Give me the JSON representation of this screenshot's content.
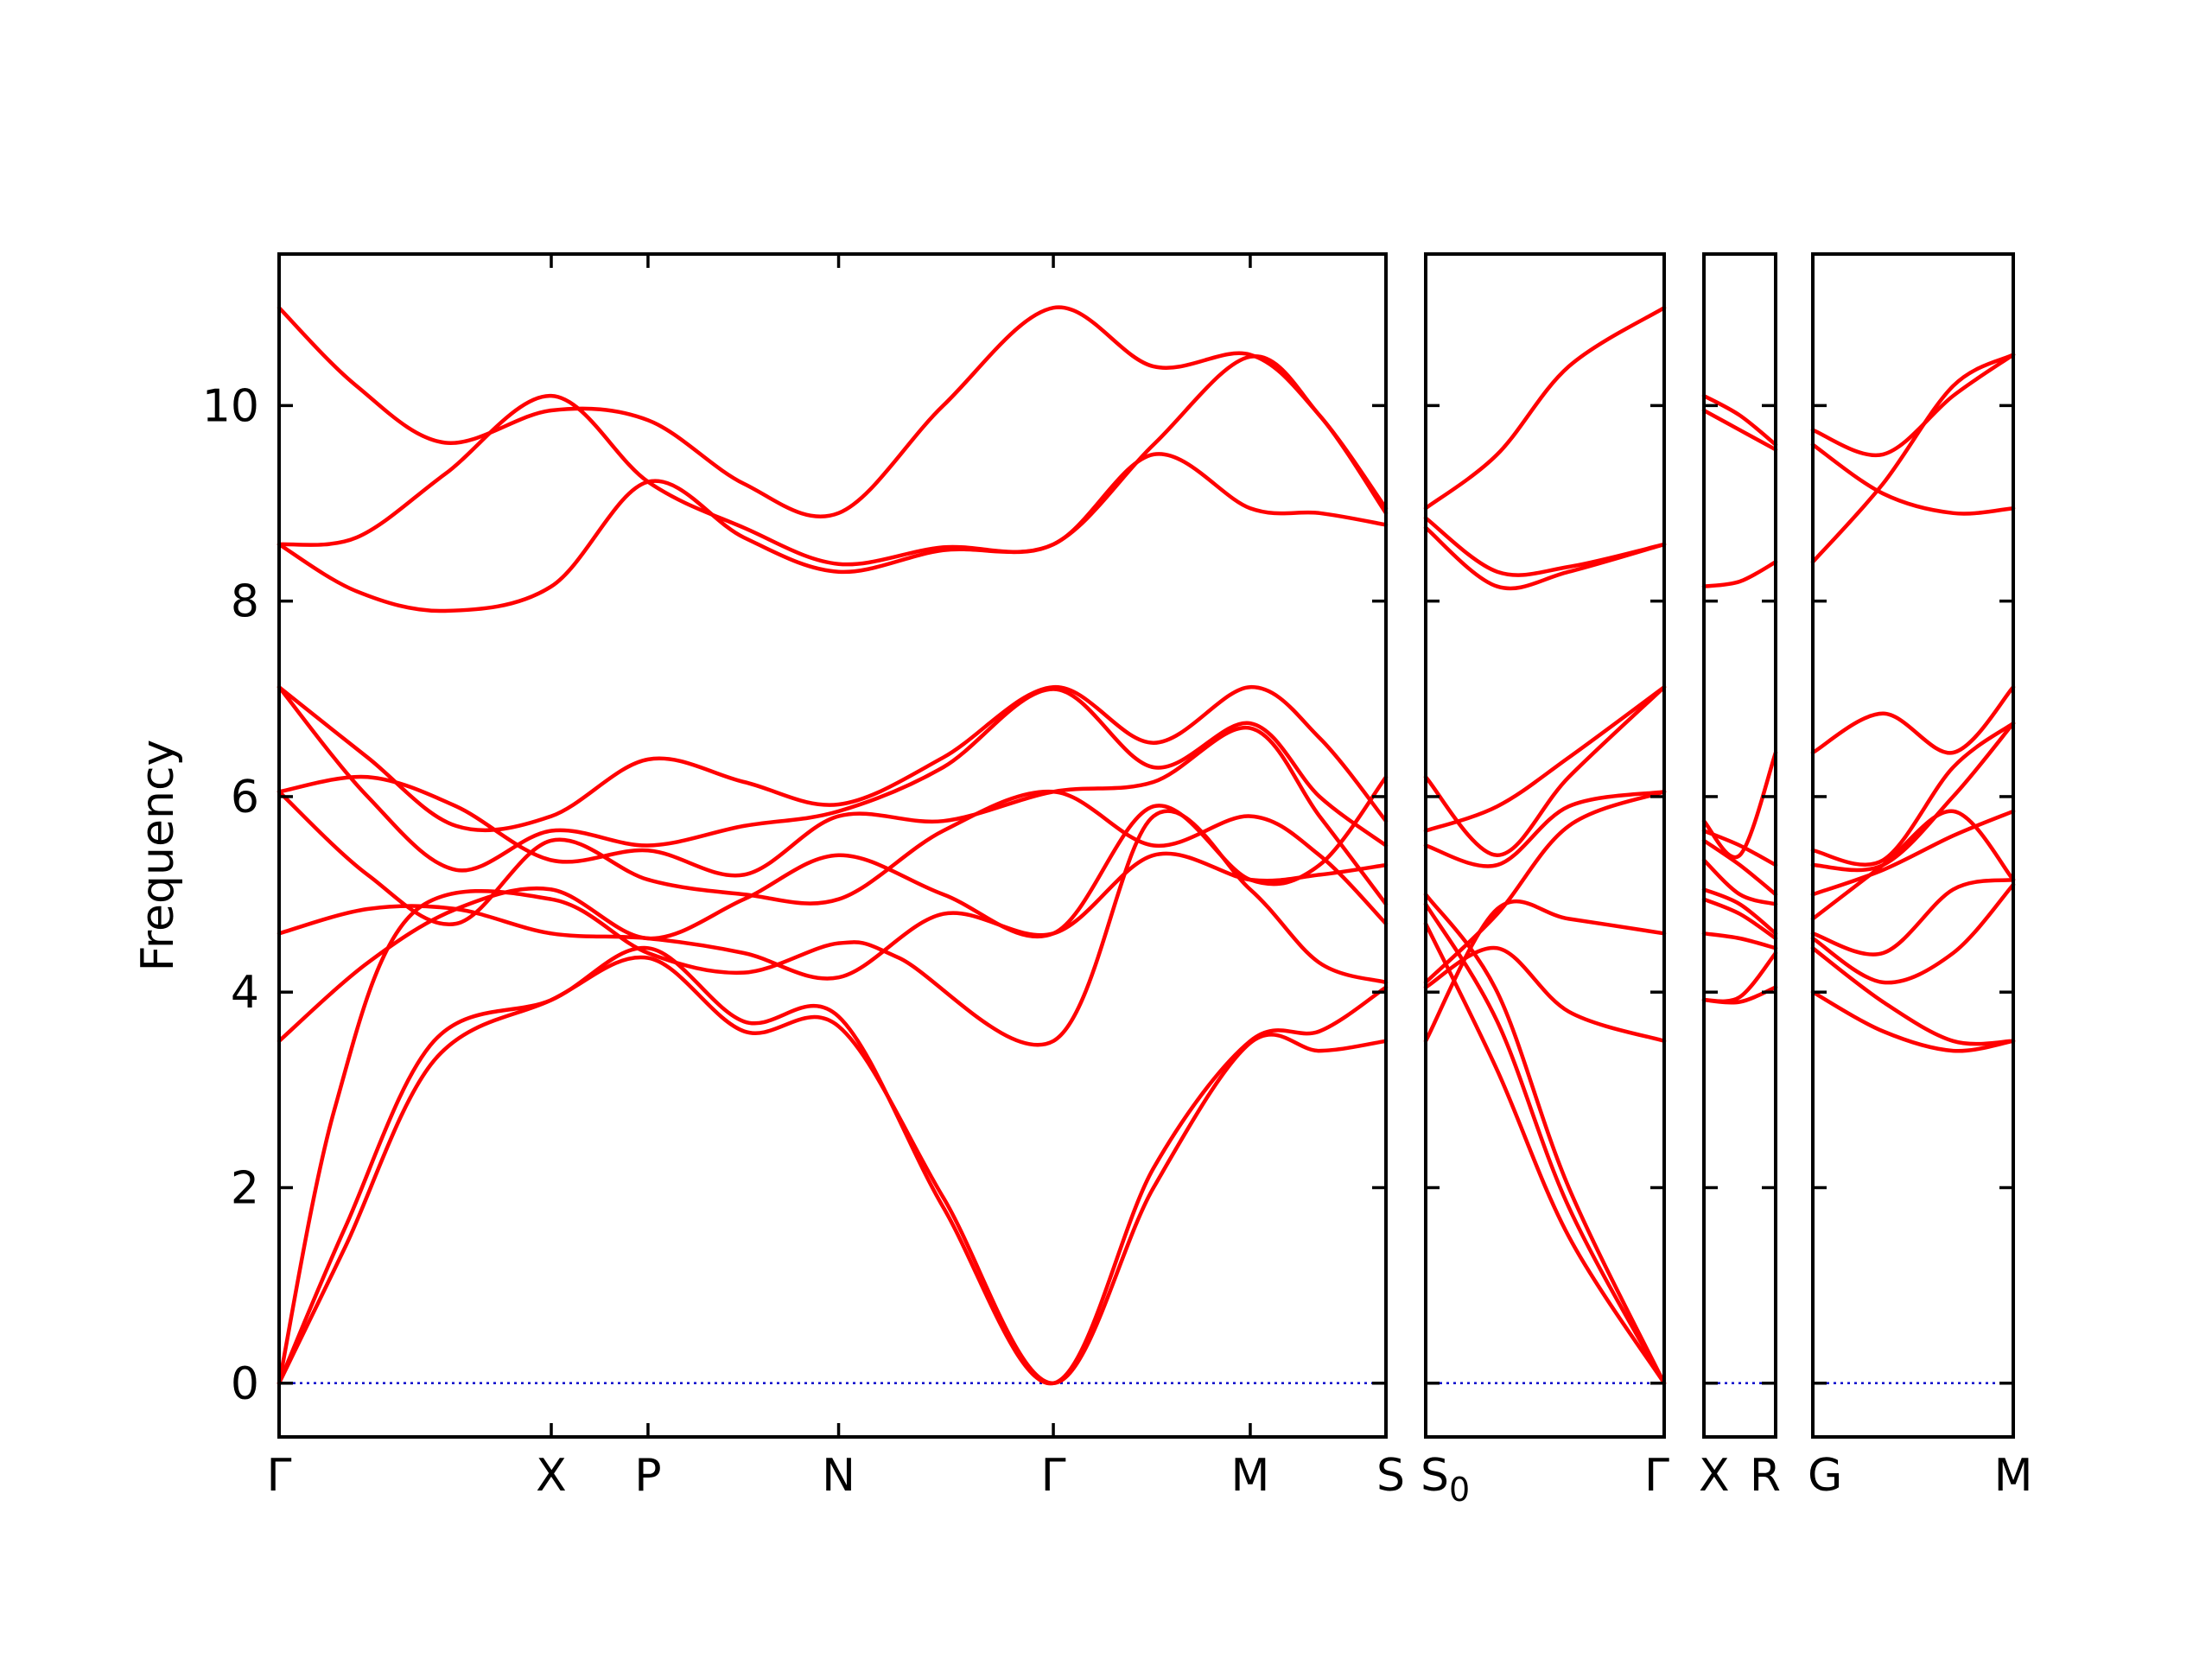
{
  "chart_data": {
    "type": "line",
    "title": "",
    "ylabel": "Frequency",
    "xlabel": "",
    "ylim": [
      -0.55,
      11.55
    ],
    "yticks": [
      0,
      2,
      4,
      6,
      8,
      10
    ],
    "grid": false,
    "colors": {
      "band": "#ff0000",
      "zero_line": "#0000cc",
      "axes": "#000000"
    },
    "segments": [
      {
        "labels": [
          "Γ",
          "X",
          "P",
          "N",
          "Γ",
          "M",
          "S"
        ],
        "points": [
          0,
          0.2459,
          0.3333,
          0.5055,
          0.6995,
          0.8774,
          1.0
        ]
      },
      {
        "labels": [
          "S0",
          "Γ"
        ],
        "points": [
          0,
          1.0
        ]
      },
      {
        "labels": [
          "X",
          "R"
        ],
        "points": [
          0,
          1.0
        ]
      },
      {
        "labels": [
          "G",
          "M"
        ],
        "points": [
          0,
          1.0
        ]
      }
    ],
    "series": [
      {
        "segment": 0,
        "x": [
          0,
          0.07,
          0.15,
          0.2459,
          0.3333,
          0.42,
          0.5055,
          0.6,
          0.6995,
          0.79,
          0.8774,
          0.94,
          1.0
        ],
        "y": [
          11.0,
          10.2,
          9.62,
          9.95,
          9.85,
          9.2,
          8.9,
          10.0,
          11.0,
          10.4,
          10.52,
          9.9,
          8.95
        ]
      },
      {
        "segment": 0,
        "x": [
          0,
          0.07,
          0.15,
          0.2459,
          0.3333,
          0.42,
          0.5055,
          0.6,
          0.6995,
          0.79,
          0.8774,
          0.94,
          1.0
        ],
        "y": [
          8.58,
          8.65,
          9.3,
          10.1,
          9.22,
          8.75,
          8.38,
          8.55,
          8.58,
          9.6,
          10.5,
          9.9,
          8.9
        ]
      },
      {
        "segment": 0,
        "x": [
          0,
          0.07,
          0.15,
          0.2459,
          0.3333,
          0.42,
          0.5055,
          0.6,
          0.6995,
          0.79,
          0.8774,
          0.94,
          1.0
        ],
        "y": [
          8.58,
          8.1,
          7.9,
          8.15,
          9.22,
          8.65,
          8.3,
          8.52,
          8.58,
          9.5,
          8.95,
          8.9,
          8.78
        ]
      },
      {
        "segment": 0,
        "x": [
          0,
          0.08,
          0.16,
          0.2459,
          0.3333,
          0.42,
          0.5055,
          0.6,
          0.6995,
          0.79,
          0.8774,
          0.94,
          1.0
        ],
        "y": [
          7.12,
          6.4,
          5.7,
          5.8,
          6.38,
          6.15,
          5.92,
          6.4,
          7.12,
          6.55,
          7.12,
          6.6,
          5.75
        ]
      },
      {
        "segment": 0,
        "x": [
          0,
          0.08,
          0.16,
          0.2459,
          0.3333,
          0.42,
          0.5055,
          0.6,
          0.6995,
          0.79,
          0.8774,
          0.94,
          1.0
        ],
        "y": [
          7.12,
          6.0,
          5.25,
          5.65,
          5.5,
          5.7,
          5.85,
          6.3,
          7.1,
          6.3,
          6.75,
          6.0,
          5.5
        ]
      },
      {
        "segment": 0,
        "x": [
          0,
          0.08,
          0.16,
          0.2459,
          0.3333,
          0.42,
          0.5055,
          0.6,
          0.6995,
          0.79,
          0.8774,
          0.94,
          1.0
        ],
        "y": [
          6.05,
          6.2,
          5.9,
          5.35,
          5.45,
          5.2,
          5.8,
          5.75,
          6.05,
          6.15,
          6.7,
          5.8,
          4.9
        ]
      },
      {
        "segment": 0,
        "x": [
          0,
          0.08,
          0.16,
          0.2459,
          0.3333,
          0.42,
          0.5055,
          0.6,
          0.6995,
          0.79,
          0.8774,
          0.94,
          1.0
        ],
        "y": [
          6.05,
          5.2,
          4.7,
          5.55,
          5.15,
          5.0,
          4.95,
          5.65,
          6.05,
          5.5,
          5.8,
          5.4,
          4.7
        ]
      },
      {
        "segment": 0,
        "x": [
          0,
          0.08,
          0.16,
          0.2459,
          0.3333,
          0.42,
          0.5055,
          0.6,
          0.6995,
          0.79,
          0.8774,
          0.94,
          1.0
        ],
        "y": [
          4.6,
          4.85,
          4.85,
          4.6,
          4.55,
          4.4,
          4.15,
          4.8,
          4.6,
          5.4,
          5.15,
          5.2,
          5.3
        ]
      },
      {
        "segment": 0,
        "x": [
          0,
          0.08,
          0.16,
          0.2459,
          0.3333,
          0.42,
          0.5055,
          0.6,
          0.6995,
          0.79,
          0.8774,
          0.94,
          1.0
        ],
        "y": [
          3.5,
          4.3,
          4.85,
          5.05,
          4.55,
          4.95,
          5.4,
          5.0,
          4.6,
          5.9,
          5.15,
          5.3,
          6.2
        ]
      },
      {
        "segment": 0,
        "x": [
          0,
          0.05,
          0.12,
          0.2459,
          0.3333,
          0.42,
          0.5055,
          0.56,
          0.6995,
          0.79,
          0.8774,
          0.94,
          1.0
        ],
        "y": [
          0,
          2.8,
          4.8,
          4.95,
          4.4,
          4.2,
          4.5,
          4.35,
          3.5,
          5.8,
          5.05,
          4.3,
          4.1
        ]
      },
      {
        "segment": 0,
        "x": [
          0,
          0.06,
          0.14,
          0.2459,
          0.3333,
          0.42,
          0.5055,
          0.6,
          0.6995,
          0.79,
          0.8774,
          0.94,
          1.0
        ],
        "y": [
          0,
          1.6,
          3.5,
          3.92,
          4.45,
          3.7,
          3.75,
          1.8,
          0,
          2.2,
          3.5,
          3.6,
          4.05
        ]
      },
      {
        "segment": 0,
        "x": [
          0,
          0.06,
          0.14,
          0.2459,
          0.3333,
          0.42,
          0.5055,
          0.6,
          0.6995,
          0.79,
          0.8774,
          0.94,
          1.0
        ],
        "y": [
          0,
          1.4,
          3.3,
          3.92,
          4.35,
          3.6,
          3.65,
          1.9,
          0,
          2.0,
          3.48,
          3.4,
          3.5
        ]
      },
      {
        "segment": 1,
        "x": [
          0,
          0.3,
          0.6,
          1.0
        ],
        "y": [
          8.95,
          9.5,
          10.4,
          11.0
        ]
      },
      {
        "segment": 1,
        "x": [
          0,
          0.3,
          0.6,
          1.0
        ],
        "y": [
          8.85,
          8.3,
          8.35,
          8.58
        ]
      },
      {
        "segment": 1,
        "x": [
          0,
          0.3,
          0.6,
          1.0
        ],
        "y": [
          8.75,
          8.15,
          8.3,
          8.58
        ]
      },
      {
        "segment": 1,
        "x": [
          0,
          0.3,
          0.6,
          1.0
        ],
        "y": [
          6.2,
          5.4,
          6.2,
          7.12
        ]
      },
      {
        "segment": 1,
        "x": [
          0,
          0.3,
          0.6,
          1.0
        ],
        "y": [
          5.65,
          5.9,
          6.4,
          7.12
        ]
      },
      {
        "segment": 1,
        "x": [
          0,
          0.3,
          0.6,
          1.0
        ],
        "y": [
          5.5,
          5.3,
          5.9,
          6.05
        ]
      },
      {
        "segment": 1,
        "x": [
          0,
          0.3,
          0.6,
          1.0
        ],
        "y": [
          4.1,
          4.8,
          5.7,
          6.05
        ]
      },
      {
        "segment": 1,
        "x": [
          0,
          0.3,
          0.6,
          1.0
        ],
        "y": [
          3.5,
          4.85,
          4.75,
          4.6
        ]
      },
      {
        "segment": 1,
        "x": [
          0,
          0.3,
          0.6,
          1.0
        ],
        "y": [
          4.05,
          4.45,
          3.8,
          3.5
        ]
      },
      {
        "segment": 1,
        "x": [
          0,
          0.3,
          0.6,
          1.0
        ],
        "y": [
          5.0,
          4.0,
          2.0,
          0
        ]
      },
      {
        "segment": 1,
        "x": [
          0,
          0.3,
          0.6,
          1.0
        ],
        "y": [
          4.9,
          3.7,
          1.8,
          0
        ]
      },
      {
        "segment": 1,
        "x": [
          0,
          0.3,
          0.6,
          1.0
        ],
        "y": [
          4.7,
          3.2,
          1.5,
          0
        ]
      },
      {
        "segment": 2,
        "x": [
          0,
          0.5,
          1.0
        ],
        "y": [
          10.1,
          9.9,
          9.6
        ]
      },
      {
        "segment": 2,
        "x": [
          0,
          0.5,
          1.0
        ],
        "y": [
          9.95,
          9.75,
          9.55
        ]
      },
      {
        "segment": 2,
        "x": [
          0,
          0.5,
          1.0
        ],
        "y": [
          8.15,
          8.2,
          8.4
        ]
      },
      {
        "segment": 2,
        "x": [
          0,
          0.5,
          1.0
        ],
        "y": [
          5.75,
          5.4,
          6.45
        ]
      },
      {
        "segment": 2,
        "x": [
          0,
          0.5,
          1.0
        ],
        "y": [
          5.65,
          5.5,
          5.3
        ]
      },
      {
        "segment": 2,
        "x": [
          0,
          0.5,
          1.0
        ],
        "y": [
          5.55,
          5.3,
          5.0
        ]
      },
      {
        "segment": 2,
        "x": [
          0,
          0.5,
          1.0
        ],
        "y": [
          5.35,
          5.0,
          4.9
        ]
      },
      {
        "segment": 2,
        "x": [
          0,
          0.5,
          1.0
        ],
        "y": [
          5.05,
          4.9,
          4.6
        ]
      },
      {
        "segment": 2,
        "x": [
          0,
          0.5,
          1.0
        ],
        "y": [
          4.95,
          4.8,
          4.55
        ]
      },
      {
        "segment": 2,
        "x": [
          0,
          0.5,
          1.0
        ],
        "y": [
          4.6,
          4.55,
          4.45
        ]
      },
      {
        "segment": 2,
        "x": [
          0,
          0.5,
          1.0
        ],
        "y": [
          3.92,
          3.9,
          4.05
        ]
      },
      {
        "segment": 2,
        "x": [
          0,
          0.5,
          1.0
        ],
        "y": [
          3.92,
          3.95,
          4.4
        ]
      },
      {
        "segment": 3,
        "x": [
          0,
          0.35,
          0.7,
          1.0
        ],
        "y": [
          9.75,
          9.5,
          10.1,
          10.52
        ]
      },
      {
        "segment": 3,
        "x": [
          0,
          0.35,
          0.7,
          1.0
        ],
        "y": [
          9.6,
          9.1,
          8.9,
          8.95
        ]
      },
      {
        "segment": 3,
        "x": [
          0,
          0.35,
          0.7,
          1.0
        ],
        "y": [
          8.4,
          9.2,
          10.2,
          10.52
        ]
      },
      {
        "segment": 3,
        "x": [
          0,
          0.35,
          0.7,
          1.0
        ],
        "y": [
          6.45,
          6.85,
          6.45,
          7.12
        ]
      },
      {
        "segment": 3,
        "x": [
          0,
          0.35,
          0.7,
          1.0
        ],
        "y": [
          5.45,
          5.35,
          6.3,
          6.75
        ]
      },
      {
        "segment": 3,
        "x": [
          0,
          0.35,
          0.7,
          1.0
        ],
        "y": [
          5.3,
          5.3,
          6.0,
          6.75
        ]
      },
      {
        "segment": 3,
        "x": [
          0,
          0.35,
          0.7,
          1.0
        ],
        "y": [
          5.0,
          5.25,
          5.6,
          5.85
        ]
      },
      {
        "segment": 3,
        "x": [
          0,
          0.35,
          0.7,
          1.0
        ],
        "y": [
          4.75,
          5.3,
          5.85,
          5.15
        ]
      },
      {
        "segment": 3,
        "x": [
          0,
          0.35,
          0.7,
          1.0
        ],
        "y": [
          4.6,
          4.4,
          5.05,
          5.15
        ]
      },
      {
        "segment": 3,
        "x": [
          0,
          0.35,
          0.7,
          1.0
        ],
        "y": [
          4.55,
          4.1,
          4.4,
          5.1
        ]
      },
      {
        "segment": 3,
        "x": [
          0,
          0.35,
          0.7,
          1.0
        ],
        "y": [
          4.45,
          3.9,
          3.5,
          3.5
        ]
      },
      {
        "segment": 3,
        "x": [
          0,
          0.35,
          0.7,
          1.0
        ],
        "y": [
          4.0,
          3.6,
          3.4,
          3.5
        ]
      }
    ]
  }
}
